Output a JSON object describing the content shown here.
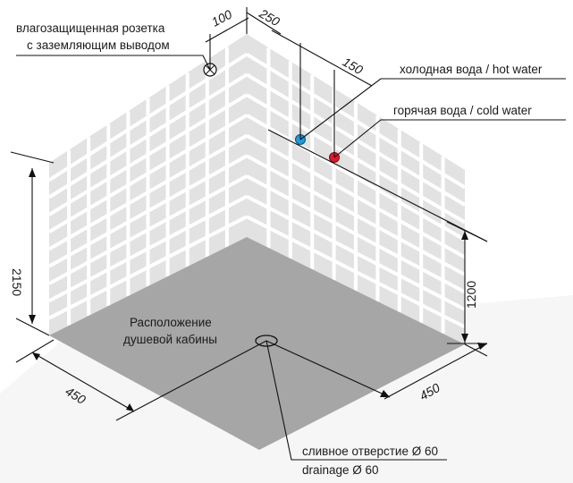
{
  "labels": {
    "socket_line1": "влагозащищенная розетка",
    "socket_line2": "с заземляющим выводом",
    "cold_water": "холодная вода / hot water",
    "hot_water": "горячая вода / cold water",
    "cabin_line1": "Расположение",
    "cabin_line2": "душевой кабины",
    "drain_line1": "сливное отверстие Ø 60",
    "drain_line2": "drainage Ø 60"
  },
  "dimensions": {
    "socket_offset": "100",
    "top_left_offset": "250",
    "pipe_offset": "150",
    "wall_height": "2150",
    "pipe_height": "1200",
    "floor_left": "450",
    "floor_right": "450"
  },
  "colors": {
    "cold_water": "#1e9bd7",
    "hot_water": "#e0192a",
    "floor": "#a6a6a6",
    "tiles": "#e2e2e2"
  }
}
